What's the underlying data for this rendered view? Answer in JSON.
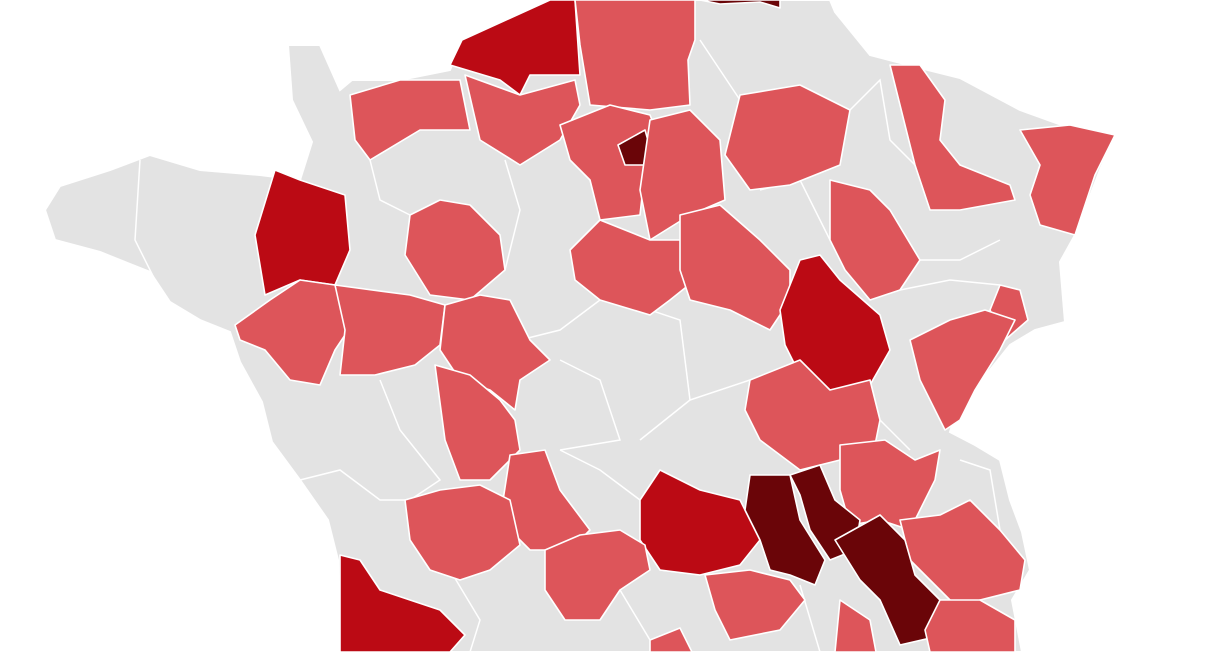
{
  "map": {
    "colors": {
      "no_data": "#e3e3e3",
      "level_1": "#dd555a",
      "level_2": "#bb0a14",
      "level_3": "#6a0508",
      "border": "#ffffff",
      "background": "#ffffff"
    },
    "shaded_area_levels": [
      2,
      1,
      1,
      1,
      3,
      1,
      3,
      1,
      1,
      1,
      1,
      1,
      2,
      1,
      1,
      1,
      2,
      1,
      1,
      1,
      1,
      1,
      1,
      1,
      1,
      1,
      1,
      2,
      1,
      3,
      3,
      3,
      2,
      1,
      1,
      1,
      1
    ]
  }
}
